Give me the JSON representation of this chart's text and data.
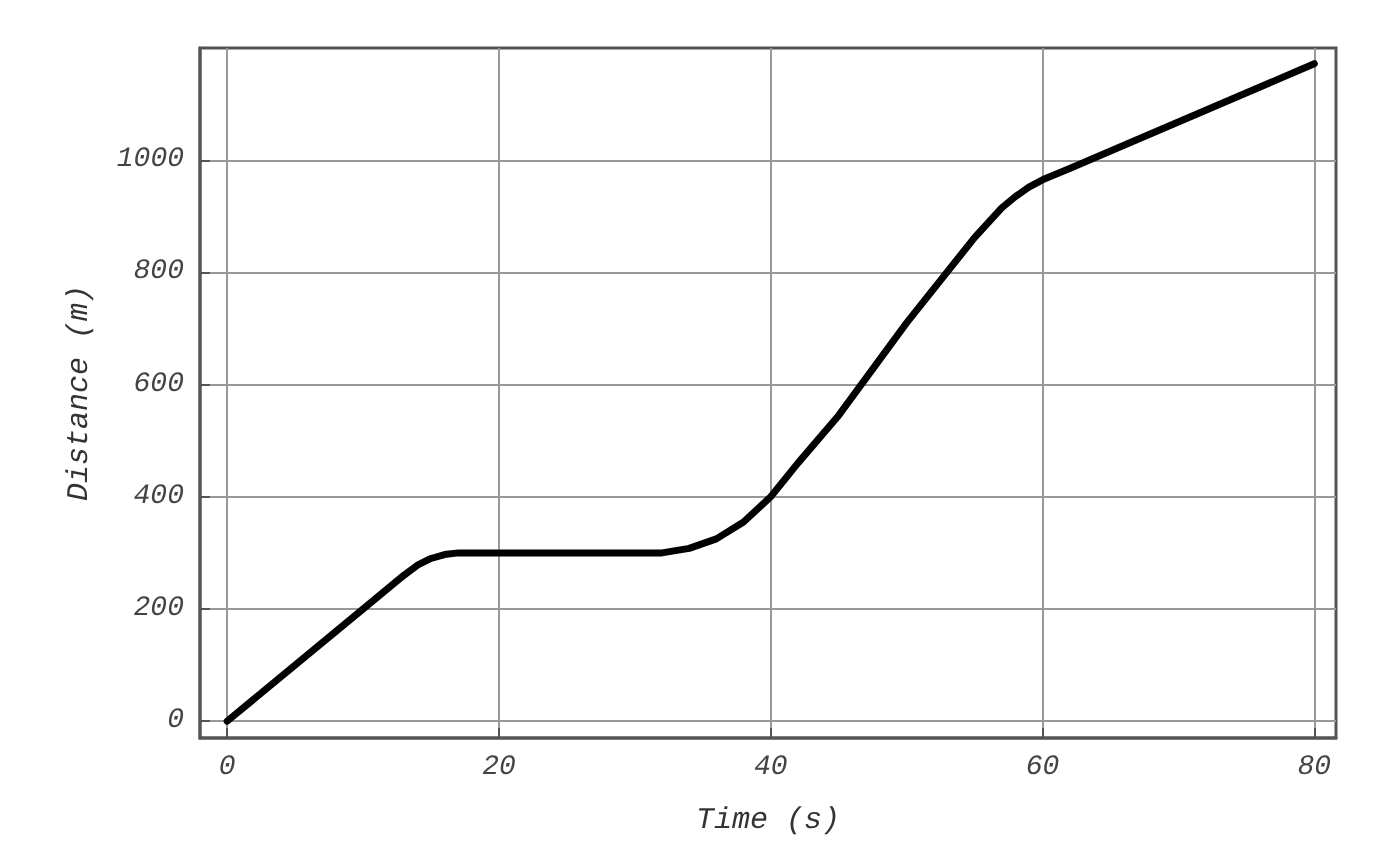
{
  "chart_data": {
    "type": "line",
    "xlabel": "Time (s)",
    "ylabel": "Distance (m)",
    "xlim": [
      -2,
      81.6
    ],
    "ylim": [
      -30,
      1200
    ],
    "xticks": [
      0,
      20,
      40,
      60,
      80
    ],
    "yticks": [
      0,
      200,
      400,
      600,
      800,
      1000
    ],
    "grid": true,
    "marker": "none",
    "line_style": "solid",
    "series": [
      {
        "color": "#000000",
        "x": [
          0,
          10,
          13,
          14,
          15,
          16,
          17,
          32,
          34,
          36,
          38,
          40,
          42,
          45,
          50,
          55,
          57,
          58,
          59,
          60,
          62,
          80
        ],
        "values": [
          0,
          200,
          260,
          278,
          290,
          297,
          300,
          300,
          308,
          325,
          355,
          400,
          460,
          545,
          710,
          862,
          915,
          935,
          952,
          965,
          985,
          1172
        ]
      }
    ]
  }
}
